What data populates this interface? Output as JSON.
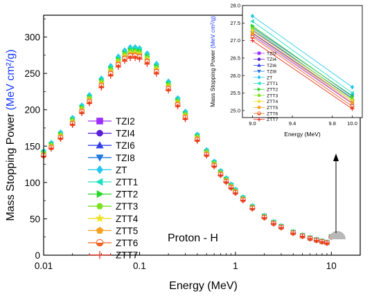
{
  "chart_data": [
    {
      "type": "scatter",
      "main": true,
      "xlabel": "Energy (MeV)",
      "ylabel_prefix": "Mass Stopping Power ",
      "ylabel_unit": "(MeV cm²/g)",
      "xscale": "log",
      "xlim": [
        0.01,
        20
      ],
      "ylim": [
        0,
        330
      ],
      "xticks": [
        0.01,
        0.1,
        1,
        10
      ],
      "xtick_labels": [
        "0.01",
        "0.1",
        "1",
        "10"
      ],
      "yticks": [
        0,
        50,
        100,
        150,
        200,
        250,
        300
      ],
      "annotation": "Proton - H",
      "legend_position": "center-left",
      "series": [
        {
          "name": "TZI2",
          "color": "#9B30FF",
          "marker": "square",
          "peak": 276,
          "y10": 25.2
        },
        {
          "name": "TZI4",
          "color": "#5A1FD6",
          "marker": "circle",
          "peak": 278,
          "y10": 25.28
        },
        {
          "name": "TZI6",
          "color": "#2F3FE8",
          "marker": "triangle-up",
          "peak": 280,
          "y10": 25.35
        },
        {
          "name": "TZI8",
          "color": "#1E78E0",
          "marker": "triangle-down",
          "peak": 282,
          "y10": 25.42
        },
        {
          "name": "ZT",
          "color": "#22C8F0",
          "marker": "diamond",
          "peak": 286,
          "y10": 25.67
        },
        {
          "name": "ZTT1",
          "color": "#20E0C0",
          "marker": "triangle-left",
          "peak": 284,
          "y10": 25.5
        },
        {
          "name": "ZTT2",
          "color": "#28D628",
          "marker": "triangle-right",
          "peak": 282,
          "y10": 25.4
        },
        {
          "name": "ZTT3",
          "color": "#7AE020",
          "marker": "hexagon",
          "peak": 280,
          "y10": 25.32
        },
        {
          "name": "ZTT4",
          "color": "#F0E020",
          "marker": "star",
          "peak": 278,
          "y10": 25.28
        },
        {
          "name": "ZTT5",
          "color": "#F5A020",
          "marker": "pentagon",
          "peak": 276,
          "y10": 25.22
        },
        {
          "name": "ZTT6",
          "color": "#F06020",
          "marker": "half-circle",
          "peak": 274,
          "y10": 25.12
        },
        {
          "name": "ZTT7",
          "color": "#E83020",
          "marker": "plus",
          "peak": 271,
          "y10": 25.05
        }
      ],
      "curve_energy": [
        0.01,
        0.012,
        0.015,
        0.02,
        0.025,
        0.03,
        0.04,
        0.05,
        0.06,
        0.07,
        0.08,
        0.09,
        0.1,
        0.12,
        0.15,
        0.2,
        0.25,
        0.3,
        0.4,
        0.5,
        0.6,
        0.7,
        0.8,
        0.9,
        1.0,
        1.2,
        1.5,
        2,
        2.5,
        3,
        4,
        5,
        6,
        7,
        8,
        9,
        10
      ],
      "curve_shape": [
        0.5,
        0.54,
        0.59,
        0.66,
        0.72,
        0.77,
        0.85,
        0.91,
        0.955,
        0.985,
        1.0,
        1.0,
        0.995,
        0.97,
        0.92,
        0.835,
        0.755,
        0.69,
        0.58,
        0.505,
        0.45,
        0.405,
        0.37,
        0.34,
        0.315,
        0.278,
        0.236,
        0.19,
        0.16,
        0.14,
        0.112,
        0.096,
        0.084,
        0.075,
        0.068,
        0.062,
        0.058
      ]
    },
    {
      "type": "line",
      "inset": true,
      "xlabel": "Energy (MeV)",
      "ylabel_prefix": "Mass Stopping Power ",
      "ylabel_unit": "(MeV cm²/g)",
      "xlim": [
        8.9,
        10.1
      ],
      "ylim": [
        24.8,
        28.0
      ],
      "xticks": [
        9.0,
        9.4,
        9.8,
        10.0
      ],
      "xtick_labels": [
        "9.0",
        "9.4",
        "9.8",
        "10.0"
      ],
      "yticks": [
        25.0,
        25.5,
        26.0,
        26.5,
        27.0,
        27.5,
        28.0
      ],
      "ytick_labels": [
        "25.0",
        "25.5",
        "26.0",
        "26.5",
        "27.0",
        "27.5",
        "28.0"
      ],
      "x": [
        9.0,
        10.0
      ],
      "series": [
        {
          "name": "TZI2",
          "values": [
            27.15,
            25.2
          ]
        },
        {
          "name": "TZI4",
          "values": [
            27.22,
            25.28
          ]
        },
        {
          "name": "TZI6",
          "values": [
            27.3,
            25.35
          ]
        },
        {
          "name": "TZI8",
          "values": [
            27.38,
            25.42
          ]
        },
        {
          "name": "ZT",
          "values": [
            27.7,
            25.67
          ]
        },
        {
          "name": "ZTT1",
          "values": [
            27.55,
            25.5
          ]
        },
        {
          "name": "ZTT2",
          "values": [
            27.42,
            25.4
          ]
        },
        {
          "name": "ZTT3",
          "values": [
            27.35,
            25.32
          ]
        },
        {
          "name": "ZTT4",
          "values": [
            27.28,
            25.28
          ]
        },
        {
          "name": "ZTT5",
          "values": [
            27.2,
            25.22
          ]
        },
        {
          "name": "ZTT6",
          "values": [
            27.1,
            25.12
          ]
        },
        {
          "name": "ZTT7",
          "values": [
            27.0,
            25.05
          ]
        }
      ]
    }
  ]
}
